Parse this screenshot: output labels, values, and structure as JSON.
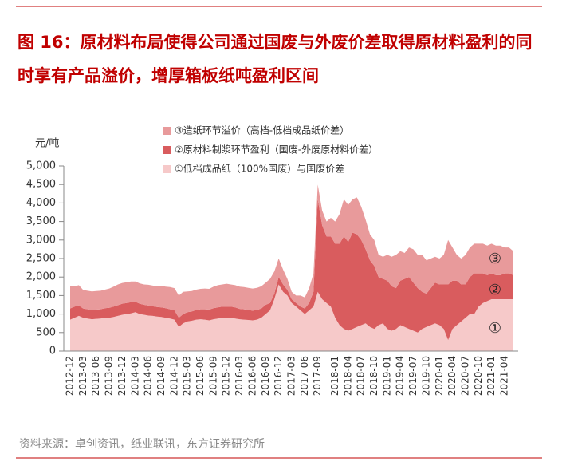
{
  "title": "图 16：原材料布局使得公司通过国废与外废价差取得原材料盈利的同时享有产品溢价，增厚箱板纸吨盈利区间",
  "source": "资料来源：卓创资讯，纸业联讯，东方证券研究所",
  "chart_data": {
    "type": "stacked-area",
    "y_unit": "元/吨",
    "categories": [
      "2012-12",
      null,
      null,
      "2013-03",
      null,
      null,
      "2013-06",
      null,
      null,
      "2013-09",
      null,
      null,
      "2013-12",
      null,
      null,
      "2014-03",
      null,
      null,
      "2014-06",
      null,
      null,
      "2014-09",
      null,
      null,
      "2014-12",
      null,
      null,
      "2015-03",
      null,
      null,
      "2015-06",
      null,
      null,
      "2015-09",
      null,
      null,
      "2015-12",
      null,
      null,
      "2016-03",
      null,
      null,
      "2016-06",
      null,
      null,
      "2016-09",
      null,
      null,
      "2016-12",
      null,
      null,
      "2017-03",
      null,
      null,
      "2017-06",
      null,
      null,
      "2017-09",
      null,
      null,
      null,
      "2018-01",
      null,
      null,
      "2018-04",
      null,
      null,
      "2018-07",
      null,
      null,
      "2018-10",
      null,
      null,
      "2019-01",
      null,
      null,
      "2019-04",
      null,
      null,
      "2019-07",
      null,
      null,
      "2019-10",
      null,
      null,
      "2020-01",
      null,
      null,
      "2020-04",
      null,
      null,
      "2020-07",
      null,
      null,
      "2020-10",
      null,
      null,
      "2021-01",
      null,
      null,
      "2021-04",
      null,
      null
    ],
    "series": [
      {
        "name": "①低档成品纸（100%国废）与国废价差",
        "color": "#f6c9c9",
        "values": [
          850,
          900,
          950,
          900,
          880,
          860,
          870,
          880,
          900,
          900,
          920,
          950,
          980,
          1000,
          1020,
          1050,
          1000,
          980,
          960,
          950,
          930,
          920,
          900,
          880,
          850,
          650,
          750,
          800,
          820,
          850,
          860,
          850,
          830,
          860,
          880,
          900,
          900,
          900,
          880,
          860,
          850,
          840,
          830,
          850,
          900,
          1000,
          1100,
          1400,
          1800,
          1600,
          1500,
          1300,
          1200,
          1100,
          1000,
          1100,
          1200,
          1600,
          1400,
          1300,
          1200,
          900,
          700,
          600,
          550,
          600,
          650,
          700,
          750,
          650,
          600,
          700,
          750,
          600,
          550,
          600,
          700,
          650,
          600,
          550,
          500,
          600,
          650,
          700,
          750,
          700,
          600,
          300,
          600,
          700,
          800,
          900,
          1000,
          1000,
          1200,
          1300,
          1350,
          1400,
          1400,
          1400,
          1400,
          1400,
          1400
        ]
      },
      {
        "name": "②原材料制浆环节盈利（国废-外废原材料价差）",
        "color": "#d95c5e",
        "values": [
          300,
          300,
          280,
          250,
          250,
          250,
          250,
          250,
          260,
          270,
          280,
          290,
          300,
          300,
          300,
          280,
          280,
          270,
          270,
          260,
          260,
          260,
          260,
          250,
          250,
          250,
          250,
          250,
          250,
          260,
          270,
          280,
          290,
          300,
          300,
          300,
          300,
          300,
          300,
          280,
          280,
          270,
          260,
          260,
          250,
          250,
          200,
          150,
          200,
          200,
          150,
          100,
          100,
          100,
          150,
          200,
          400,
          2500,
          2000,
          1800,
          1900,
          2000,
          2200,
          2500,
          2400,
          2600,
          2500,
          2300,
          2000,
          1800,
          1700,
          1300,
          1200,
          1300,
          1200,
          1100,
          1200,
          1300,
          1400,
          1300,
          1200,
          1000,
          900,
          1000,
          1100,
          1100,
          1200,
          1500,
          1300,
          1200,
          1000,
          900,
          1000,
          1100,
          900,
          800,
          700,
          700,
          650,
          650,
          700,
          700,
          650
        ]
      },
      {
        "name": "③造纸环节溢价（高档-低档成品纸价差）",
        "color": "#e89a9b",
        "values": [
          600,
          550,
          550,
          500,
          500,
          500,
          500,
          500,
          500,
          520,
          540,
          560,
          560,
          560,
          560,
          550,
          550,
          550,
          560,
          560,
          560,
          580,
          580,
          600,
          600,
          600,
          600,
          560,
          550,
          550,
          550,
          560,
          560,
          580,
          600,
          600,
          620,
          600,
          600,
          600,
          600,
          600,
          600,
          600,
          600,
          600,
          650,
          600,
          500,
          400,
          300,
          200,
          200,
          300,
          300,
          400,
          500,
          400,
          400,
          400,
          500,
          600,
          800,
          1000,
          1000,
          900,
          1000,
          900,
          800,
          700,
          700,
          600,
          600,
          700,
          800,
          900,
          800,
          700,
          800,
          900,
          900,
          1000,
          900,
          800,
          700,
          700,
          800,
          1200,
          900,
          700,
          700,
          800,
          800,
          800,
          800,
          800,
          800,
          800,
          800,
          800,
          700,
          700,
          650
        ]
      }
    ],
    "annotations": [
      "③",
      "②",
      "①"
    ],
    "ylim": [
      0,
      5000
    ],
    "yticks": [
      0,
      500,
      {
        "value": 1000,
        "label": "1,000"
      },
      {
        "value": 1500,
        "label": "1,500"
      },
      {
        "value": 2000,
        "label": "2,000"
      },
      {
        "value": 2500,
        "label": "2,500"
      },
      {
        "value": 3000,
        "label": "3,000"
      },
      {
        "value": 3500,
        "label": "3,500"
      },
      {
        "value": 4000,
        "label": "4,000"
      },
      {
        "value": 4500,
        "label": "4,500"
      },
      {
        "value": 5000,
        "label": "5,000"
      }
    ]
  }
}
